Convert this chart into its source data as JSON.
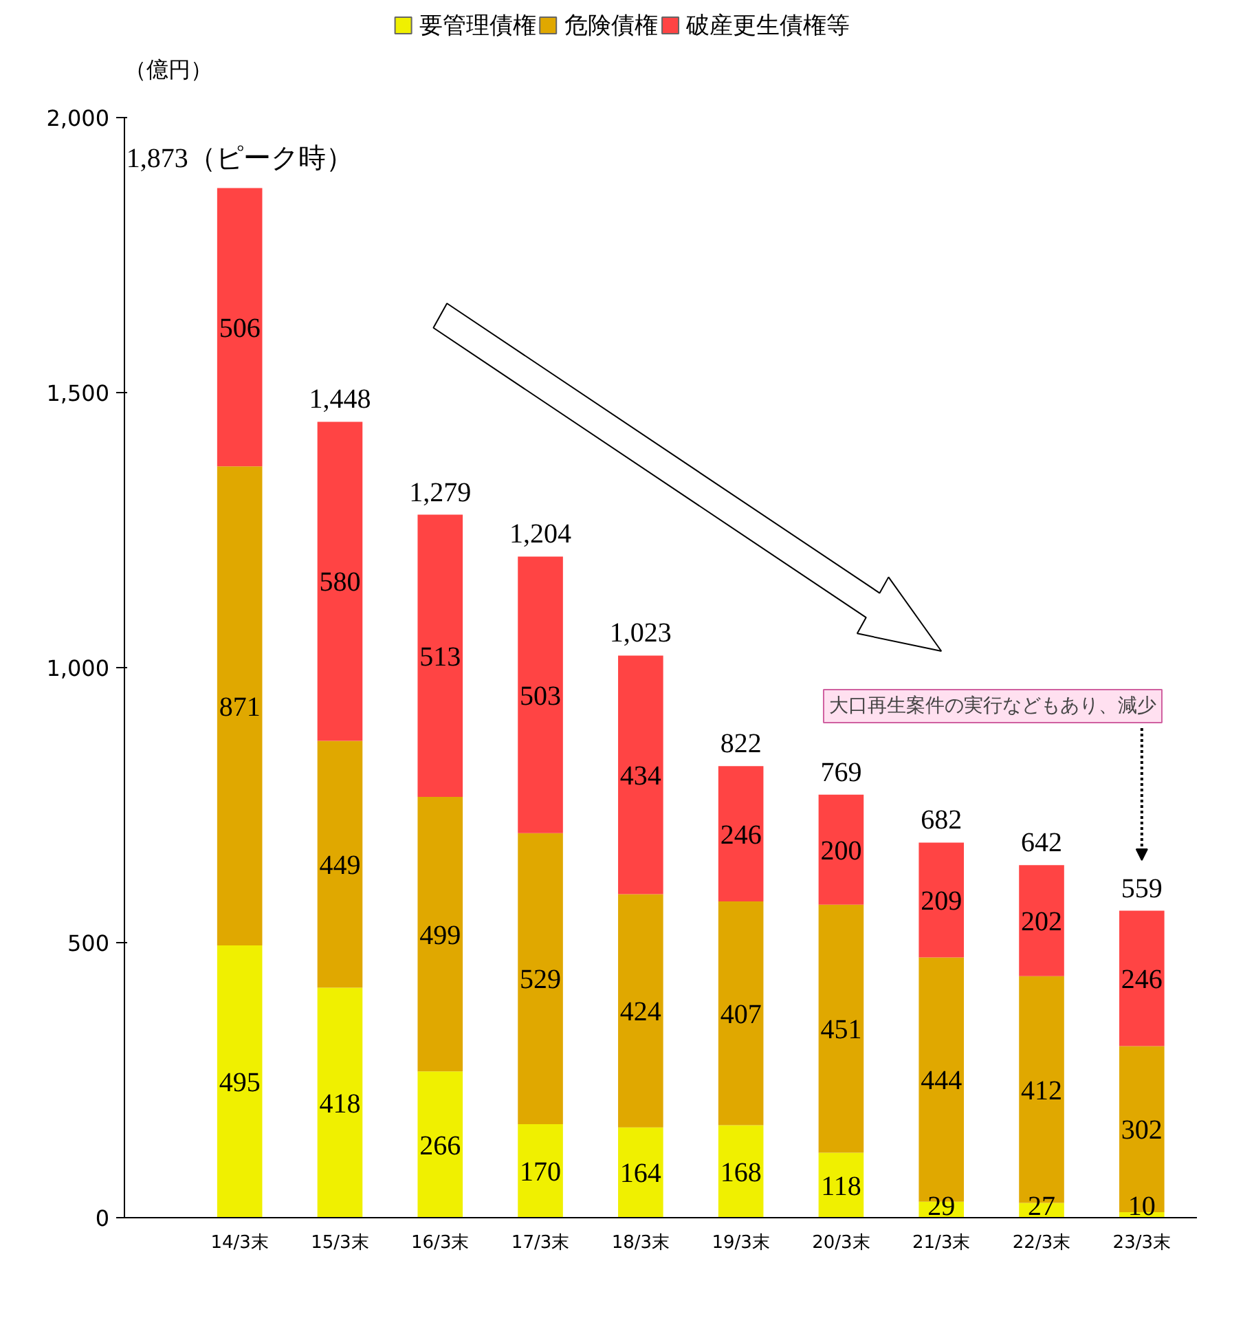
{
  "chart_data": {
    "type": "bar",
    "stacked": true,
    "ylabel": "（億円）",
    "categories": [
      "14/3末",
      "15/3末",
      "16/3末",
      "17/3末",
      "18/3末",
      "19/3末",
      "20/3末",
      "21/3末",
      "22/3末",
      "23/3末"
    ],
    "series": [
      {
        "name": "要管理債権",
        "color": "#f0f000",
        "values": [
          495,
          418,
          266,
          170,
          164,
          168,
          118,
          29,
          27,
          10
        ]
      },
      {
        "name": "危険債権",
        "color": "#e0a800",
        "values": [
          871,
          449,
          499,
          529,
          424,
          407,
          451,
          444,
          412,
          302
        ]
      },
      {
        "name": "破産更生債権等",
        "color": "#ff4444",
        "values": [
          506,
          580,
          513,
          503,
          434,
          246,
          200,
          209,
          202,
          246
        ]
      }
    ],
    "totals": [
      "1,873（ピーク時）",
      "1,448",
      "1,279",
      "1,204",
      "1,023",
      "822",
      "769",
      "682",
      "642",
      "559"
    ],
    "data_labels": true,
    "ylim": [
      0,
      2000
    ],
    "yticks": [
      0,
      500,
      {
        "value": 1000,
        "label": "1,000"
      },
      {
        "value": 1500,
        "label": "1,500"
      },
      {
        "value": 2000,
        "label": "2,000"
      }
    ],
    "grid": false,
    "legend": "top",
    "annotations": [
      "大口再生案件の実行などもあり、減少"
    ]
  }
}
